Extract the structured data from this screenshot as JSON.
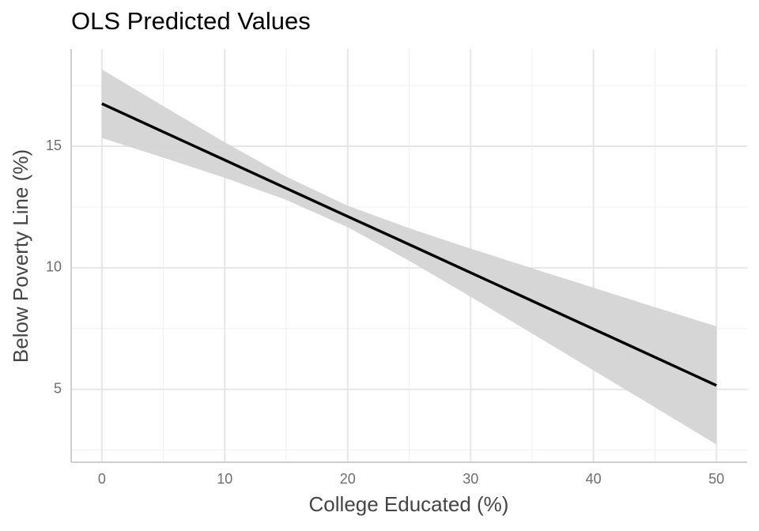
{
  "chart_data": {
    "type": "line",
    "title": "OLS Predicted Values",
    "x_label": "College Educated (%)",
    "y_label": "Below Poverty Line (%)",
    "x": [
      0,
      5,
      10,
      15,
      20,
      25,
      30,
      35,
      40,
      45,
      50
    ],
    "series": [
      {
        "color": "#000000",
        "values": [
          16.75,
          15.59,
          14.43,
          13.27,
          12.11,
          10.96,
          9.8,
          8.64,
          7.48,
          6.32,
          5.16
        ]
      }
    ],
    "band": {
      "color": "#d4d4d4",
      "lower": [
        15.34,
        14.53,
        13.7,
        12.79,
        11.67,
        10.29,
        8.81,
        7.3,
        5.78,
        4.26,
        2.73
      ],
      "upper": [
        18.16,
        16.65,
        15.16,
        13.75,
        12.55,
        11.63,
        10.79,
        9.98,
        9.18,
        8.38,
        7.59
      ]
    },
    "xlim": [
      -2.5,
      52.5
    ],
    "xticks": [
      0,
      10,
      20,
      30,
      40,
      50
    ],
    "ylim": [
      2.0,
      19.0
    ],
    "yticks": [
      5,
      10,
      15
    ],
    "grid": true
  }
}
